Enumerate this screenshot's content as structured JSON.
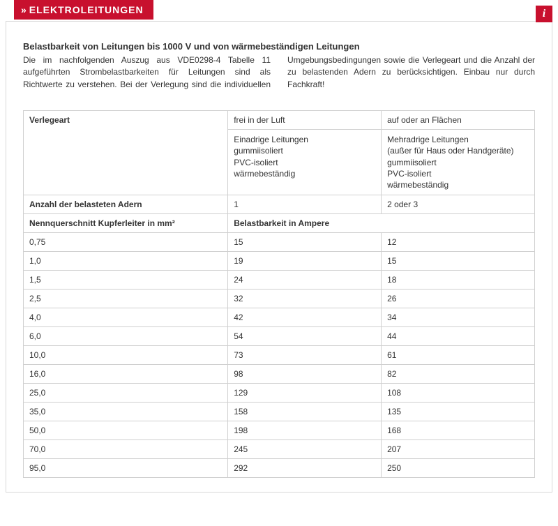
{
  "header": {
    "chevrons": "»",
    "title": "ELEKTROLEITUNGEN",
    "info_icon": "i"
  },
  "doc": {
    "title": "Belastbarkeit von Leitungen bis 1000 V und von wärmebeständigen Leitungen",
    "intro": "Die im nachfolgenden Auszug aus VDE0298-4 Tabelle 11 aufgeführten Strombelastbarkeiten für Leitungen sind als Richtwerte zu verstehen. Bei der Verlegung sind die individuellen Umgebungsbedingungen sowie die Verlegeart und die Anzahl der zu belastenden Adern zu berücksichtigen. Einbau nur durch Fachkraft!"
  },
  "table": {
    "head": {
      "verlegeart_label": "Verlegeart",
      "col1_top": "frei in der Luft",
      "col2_top": "auf oder an Flächen",
      "col1_desc": "Einadrige Leitungen\ngummiisoliert\nPVC-isoliert\nwärmebeständig",
      "col2_desc": "Mehradrige Leitungen\n(außer für Haus oder Handgeräte)\ngummiisoliert\nPVC-isoliert\nwärmebeständig",
      "anzahl_label": "Anzahl der belasteten Adern",
      "anzahl_c1": "1",
      "anzahl_c2": "2 oder 3",
      "nenn_label": "Nennquerschnitt Kupferleiter in mm²",
      "belast_label": "Belastbarkeit in Ampere"
    },
    "rows": [
      {
        "q": "0,75",
        "a": "15",
        "b": "12"
      },
      {
        "q": "1,0",
        "a": "19",
        "b": "15"
      },
      {
        "q": "1,5",
        "a": "24",
        "b": "18"
      },
      {
        "q": "2,5",
        "a": "32",
        "b": "26"
      },
      {
        "q": "4,0",
        "a": "42",
        "b": "34"
      },
      {
        "q": "6,0",
        "a": "54",
        "b": "44"
      },
      {
        "q": "10,0",
        "a": "73",
        "b": "61"
      },
      {
        "q": "16,0",
        "a": "98",
        "b": "82"
      },
      {
        "q": "25,0",
        "a": "129",
        "b": "108"
      },
      {
        "q": "35,0",
        "a": "158",
        "b": "135"
      },
      {
        "q": "50,0",
        "a": "198",
        "b": "168"
      },
      {
        "q": "70,0",
        "a": "245",
        "b": "207"
      },
      {
        "q": "95,0",
        "a": "292",
        "b": "250"
      }
    ]
  },
  "style": {
    "accent": "#c8102e",
    "border": "#d0d0d0",
    "text": "#333333"
  }
}
